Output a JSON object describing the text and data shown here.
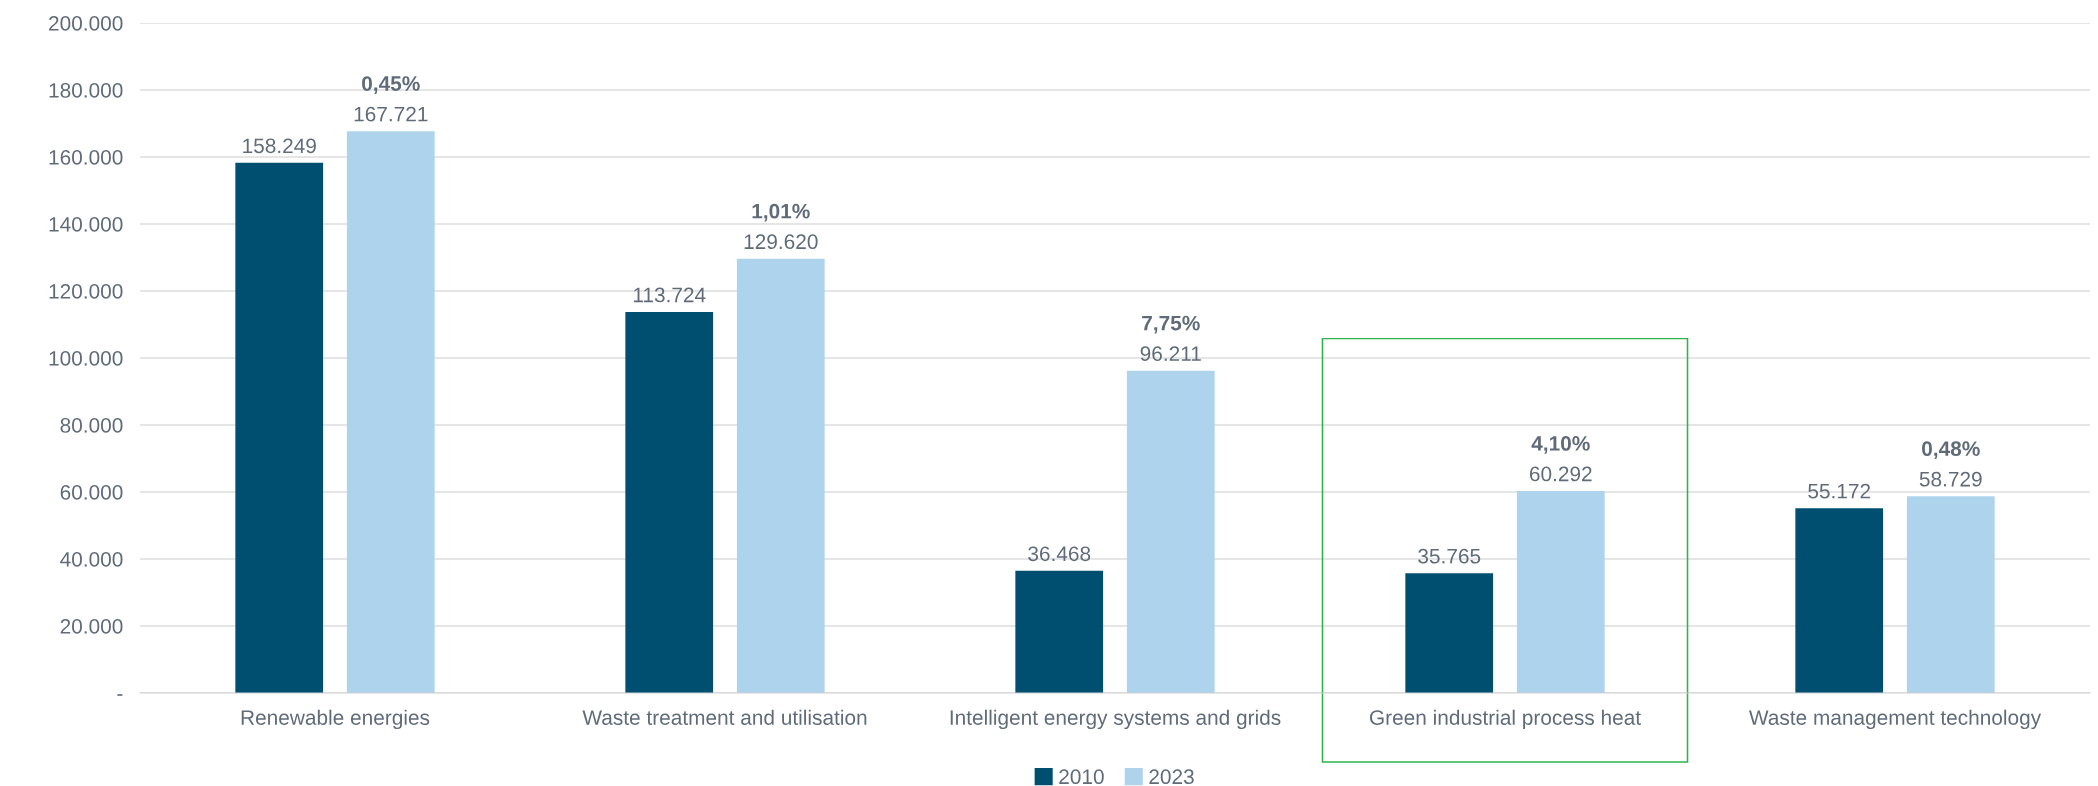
{
  "chart_data": {
    "type": "bar",
    "categories": [
      "Renewable energies",
      "Waste treatment and utilisation",
      "Intelligent energy systems and grids",
      "Green industrial process heat",
      "Waste management technology"
    ],
    "series": [
      {
        "name": "2010",
        "color": "#004f71",
        "values": [
          158249,
          113724,
          36468,
          35765,
          55172
        ],
        "value_labels": [
          "158.249",
          "113.724",
          "36.468",
          "35.765",
          "55.172"
        ]
      },
      {
        "name": "2023",
        "color": "#aed3ec",
        "values": [
          167721,
          129620,
          96211,
          60292,
          58729
        ],
        "value_labels": [
          "167.721",
          "129.620",
          "96.211",
          "60.292",
          "58.729"
        ]
      }
    ],
    "ylim": [
      0,
      200000
    ],
    "yticks": [
      {
        "value": 0,
        "label": "-"
      },
      {
        "value": 20000,
        "label": "20.000"
      },
      {
        "value": 40000,
        "label": "40.000"
      },
      {
        "value": 60000,
        "label": "60.000"
      },
      {
        "value": 80000,
        "label": "80.000"
      },
      {
        "value": 100000,
        "label": "100.000"
      },
      {
        "value": 120000,
        "label": "120.000"
      },
      {
        "value": 140000,
        "label": "140.000"
      },
      {
        "value": 160000,
        "label": "160.000"
      },
      {
        "value": 180000,
        "label": "180.000"
      },
      {
        "value": 200000,
        "label": "200.000"
      }
    ],
    "annotations": [
      "0,45%",
      "1,01%",
      "7,75%",
      "4,10%",
      "0,48%"
    ],
    "grid": "y",
    "legend": "bottom"
  }
}
